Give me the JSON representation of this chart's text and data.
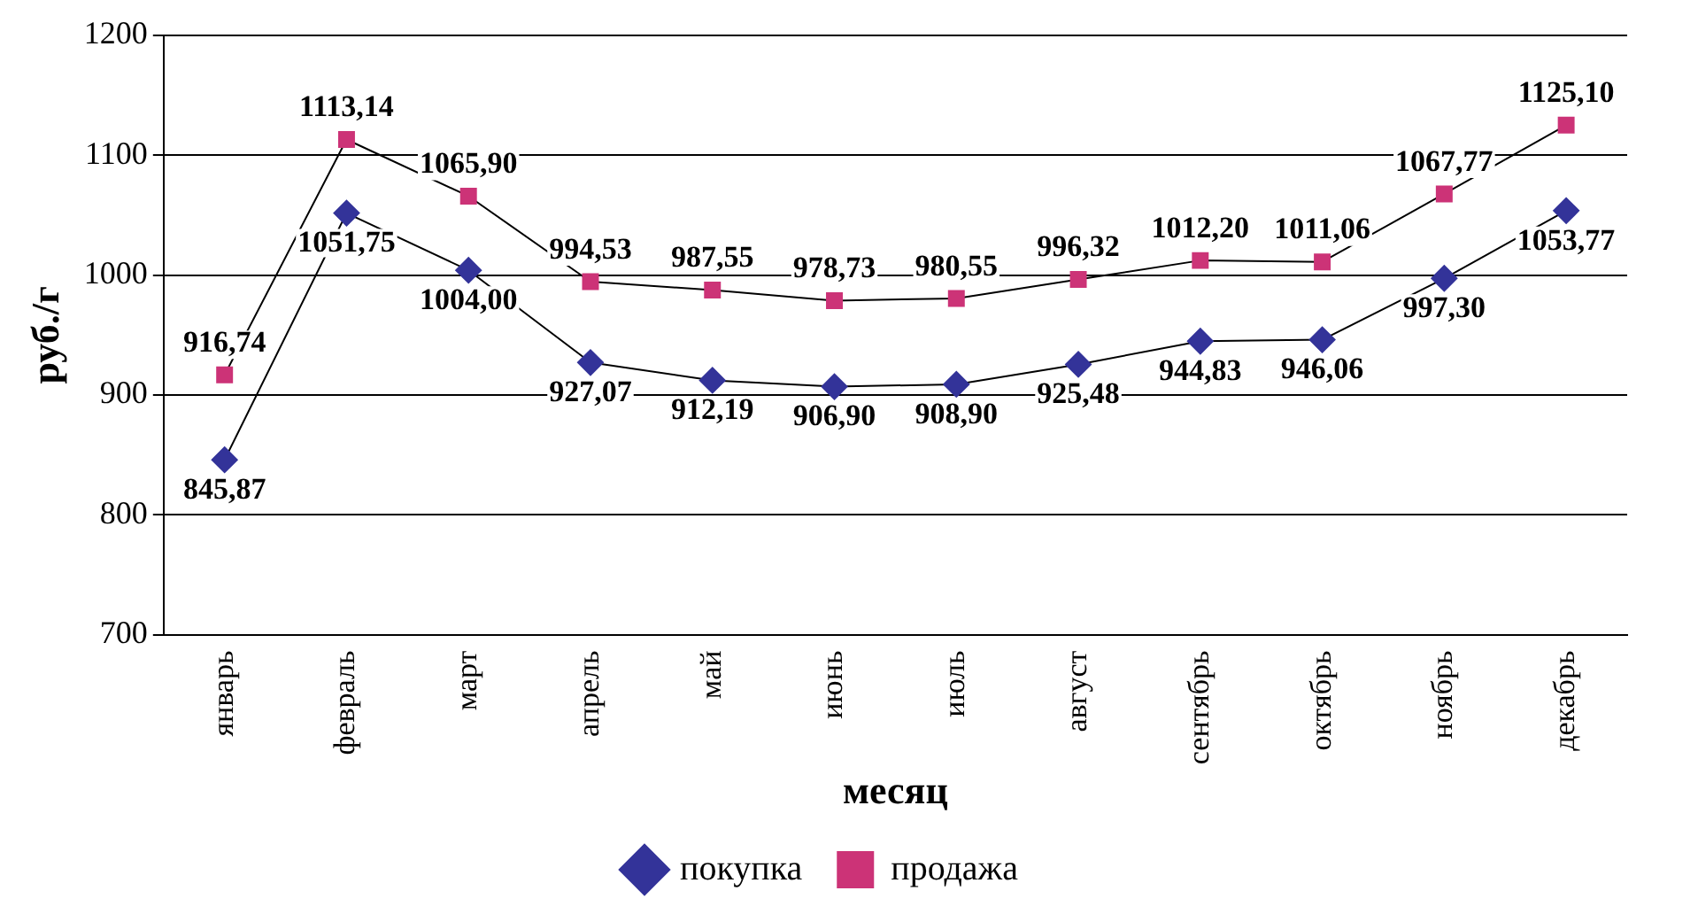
{
  "chart_data": {
    "type": "line",
    "xlabel": "месяц",
    "ylabel": "руб./г",
    "categories": [
      "январь",
      "февраль",
      "март",
      "апрель",
      "май",
      "июнь",
      "июль",
      "август",
      "сентябрь",
      "октябрь",
      "ноябрь",
      "декабрь"
    ],
    "series": [
      {
        "name": "покупка",
        "color": "#333399",
        "marker": "diamond",
        "values": [
          845.87,
          1051.75,
          1004.0,
          927.07,
          912.19,
          906.9,
          908.9,
          925.48,
          944.83,
          946.06,
          997.3,
          1053.77
        ],
        "value_labels": [
          "845,87",
          "1051,75",
          "1004,00",
          "927,07",
          "912,19",
          "906,90",
          "908,90",
          "925,48",
          "944,83",
          "946,06",
          "997,30",
          "1053,77"
        ]
      },
      {
        "name": "продажа",
        "color": "#cc3377",
        "marker": "square",
        "values": [
          916.74,
          1113.14,
          1065.9,
          994.53,
          987.55,
          978.73,
          980.55,
          996.32,
          1012.2,
          1011.06,
          1067.77,
          1125.1
        ],
        "value_labels": [
          "916,74",
          "1113,14",
          "1065,90",
          "994,53",
          "987,55",
          "978,73",
          "980,55",
          "996,32",
          "1012,20",
          "1011,06",
          "1067,77",
          "1125,10"
        ]
      }
    ],
    "ylim": [
      700,
      1200
    ],
    "yticks": [
      700,
      800,
      900,
      1000,
      1100,
      1200
    ],
    "grid": "y",
    "legend": "bottom"
  }
}
